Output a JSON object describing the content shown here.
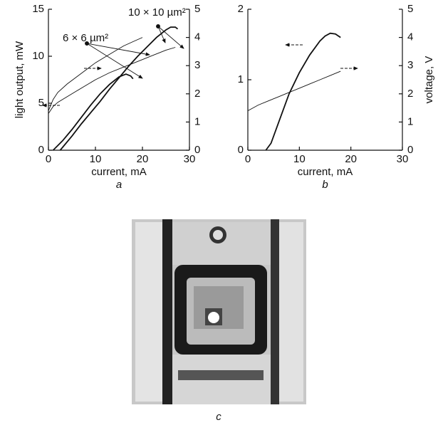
{
  "chart_data": [
    {
      "type": "line",
      "sublabel": "a",
      "x_label": "current, mA",
      "y_label": "light output, mW",
      "xlim": [
        0,
        30
      ],
      "xticks": [
        0,
        10,
        20,
        30
      ],
      "ylim": [
        0,
        15
      ],
      "yticks": [
        0,
        5,
        10,
        15
      ],
      "y2lim": [
        0,
        5
      ],
      "y2ticks": [
        0,
        1,
        2,
        3,
        4,
        5
      ],
      "annotations": [
        "6 × 6 µm²",
        "10 × 10 µm²"
      ],
      "series": [
        {
          "color": "#111111",
          "x": [
            1,
            3,
            5,
            7,
            9,
            11,
            13,
            15,
            16.5,
            17.5,
            18
          ],
          "values": [
            0,
            1,
            2.2,
            3.5,
            4.8,
            6,
            7,
            7.8,
            8.1,
            7.9,
            7.6
          ]
        },
        {
          "color": "#111111",
          "x": [
            2.5,
            5,
            7,
            9,
            11,
            13,
            15,
            17,
            19,
            21,
            23,
            25,
            26,
            27,
            27.5
          ],
          "values": [
            0,
            1.5,
            2.8,
            4,
            5.2,
            6.5,
            7.7,
            8.9,
            10,
            11,
            12,
            12.8,
            13.1,
            13.1,
            12.9
          ]
        },
        {
          "color": "#111111",
          "axis": "y2",
          "x": [
            0,
            0,
            1,
            2,
            4,
            6,
            8,
            10,
            12,
            14,
            16,
            18,
            20
          ],
          "values": [
            0,
            1.4,
            1.8,
            2.05,
            2.35,
            2.6,
            2.85,
            3.1,
            3.3,
            3.5,
            3.7,
            3.85,
            4.0
          ]
        },
        {
          "color": "#111111",
          "axis": "y2",
          "x": [
            0,
            0,
            1,
            2,
            4,
            6,
            8,
            10,
            13,
            16,
            19,
            22,
            25,
            27
          ],
          "values": [
            0,
            1.3,
            1.55,
            1.7,
            1.9,
            2.1,
            2.3,
            2.5,
            2.75,
            2.95,
            3.15,
            3.35,
            3.55,
            3.65
          ]
        }
      ]
    },
    {
      "type": "line",
      "sublabel": "b",
      "x_label": "current, mA",
      "y2_label": "voltage, V",
      "xlim": [
        0,
        30
      ],
      "xticks": [
        0,
        10,
        20,
        30
      ],
      "ylim": [
        0,
        2
      ],
      "yticks": [
        0,
        1,
        2
      ],
      "y2lim": [
        0,
        5
      ],
      "y2ticks": [
        0,
        1,
        2,
        3,
        4,
        5
      ],
      "series": [
        {
          "color": "#111111",
          "x": [
            3.5,
            4.5,
            6,
            8,
            10,
            12,
            14,
            15,
            16,
            17,
            18
          ],
          "values": [
            0,
            0.1,
            0.4,
            0.8,
            1.1,
            1.35,
            1.55,
            1.62,
            1.66,
            1.65,
            1.6
          ]
        },
        {
          "color": "#111111",
          "axis": "y2",
          "x": [
            0,
            0,
            2,
            4,
            6,
            8,
            10,
            12,
            14,
            16,
            18
          ],
          "values": [
            0,
            1.4,
            1.6,
            1.75,
            1.9,
            2.05,
            2.2,
            2.35,
            2.5,
            2.65,
            2.8
          ]
        }
      ]
    }
  ],
  "image_caption": "c"
}
